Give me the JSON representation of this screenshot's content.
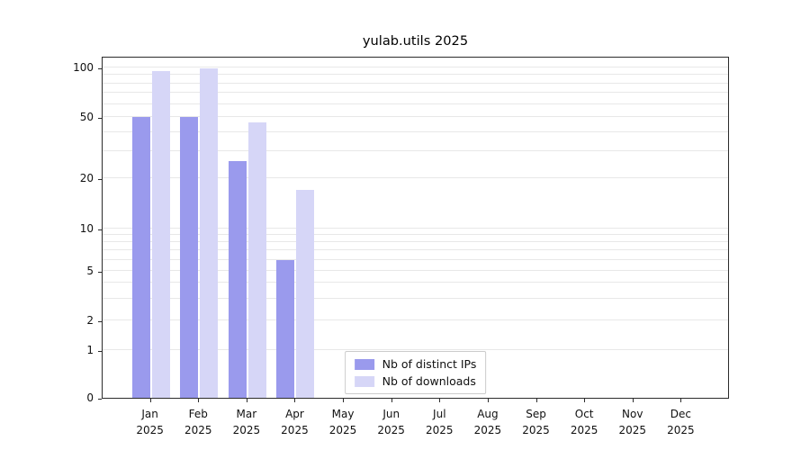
{
  "title": "yulab.utils 2025",
  "colors": {
    "distinct_ips": "#9a9aed",
    "downloads": "#d6d6f7",
    "grid": "#e8e8e8",
    "spine": "#2b2b2b"
  },
  "legend": {
    "items": [
      {
        "label": "Nb of distinct IPs",
        "color_key": "distinct_ips"
      },
      {
        "label": "Nb of downloads",
        "color_key": "downloads"
      }
    ]
  },
  "chart_data": {
    "type": "bar",
    "title": "yulab.utils 2025",
    "categories": [
      "Jan 2025",
      "Feb 2025",
      "Mar 2025",
      "Apr 2025",
      "May 2025",
      "Jun 2025",
      "Jul 2025",
      "Aug 2025",
      "Sep 2025",
      "Oct 2025",
      "Nov 2025",
      "Dec 2025"
    ],
    "series": [
      {
        "name": "Nb of distinct IPs",
        "values": [
          50,
          50,
          26,
          6,
          0,
          0,
          0,
          0,
          0,
          0,
          0,
          0
        ]
      },
      {
        "name": "Nb of downloads",
        "values": [
          95,
          99,
          46,
          17,
          0,
          0,
          0,
          0,
          0,
          0,
          0,
          0
        ]
      }
    ],
    "xlabel": "",
    "ylabel": "",
    "yscale": "symlog",
    "yticks": [
      0,
      1,
      2,
      5,
      10,
      20,
      50,
      100
    ],
    "ylim": [
      0,
      118
    ],
    "grid": "horizontal, major and minor log ticks",
    "legend_position": "lower center"
  }
}
